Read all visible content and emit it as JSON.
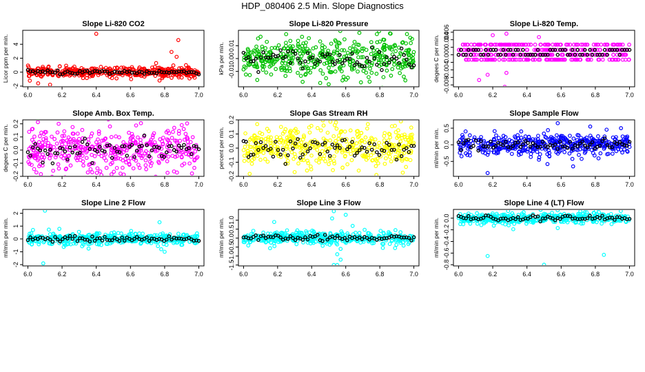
{
  "title": "HDP_080406  2.5 Min. Slope Diagnostics",
  "chart_data": [
    {
      "type": "scatter",
      "title": "Slope Li-820 CO2",
      "ylabel": "Licor ppm per min.",
      "color": "#ff0000",
      "xlim": [
        5.97,
        7.03
      ],
      "ylim": [
        -2.1,
        6.0
      ],
      "xticks": [
        "6.0",
        "6.2",
        "6.4",
        "6.6",
        "6.8",
        "7.0"
      ],
      "yticks": [
        "-2",
        "0",
        "2",
        "4"
      ],
      "spread": 0.35,
      "outliers": [
        [
          6.4,
          5.5
        ],
        [
          6.88,
          4.6
        ],
        [
          6.84,
          2.9
        ],
        [
          6.87,
          2.2
        ],
        [
          6.06,
          -1.6
        ],
        [
          6.13,
          -1.8
        ],
        [
          6.77,
          -1.2
        ],
        [
          6.75,
          1.3
        ]
      ]
    },
    {
      "type": "scatter",
      "title": "Slope Li-820 Pressure",
      "ylabel": "kPa per min.",
      "color": "#00c000",
      "xlim": [
        5.97,
        7.03
      ],
      "ylim": [
        -0.022,
        0.022
      ],
      "xticks": [
        "6.0",
        "6.2",
        "6.4",
        "6.6",
        "6.8",
        "7.0"
      ],
      "yticks": [
        "-0.01",
        "0.00",
        "0.01"
      ],
      "spread": 0.008,
      "outliers": [
        [
          6.25,
          0.019
        ],
        [
          6.45,
          -0.019
        ],
        [
          6.68,
          0.02
        ],
        [
          6.5,
          -0.02
        ],
        [
          6.74,
          -0.018
        ],
        [
          6.95,
          -0.017
        ],
        [
          6.1,
          0.017
        ]
      ]
    },
    {
      "type": "scatter",
      "title": "Slope Li-820 Temp.",
      "ylabel": "degees C per min.",
      "color": "#ff00ff",
      "xlim": [
        5.97,
        7.03
      ],
      "ylim": [
        -0.0085,
        0.0065
      ],
      "xticks": [
        "6.0",
        "6.2",
        "6.4",
        "6.6",
        "6.8",
        "7.0"
      ],
      "yticks": [
        "-0.008",
        "-0.004",
        "0.000",
        "0.004"
      ],
      "yticks_vals": [
        -0.008,
        -0.004,
        0.0,
        0.004
      ],
      "extra_ticks": [
        -0.006,
        -0.002,
        0.002,
        0.006
      ],
      "extra_labels": [
        "",
        "",
        "",
        "0.006"
      ],
      "spread": 0.0,
      "levels": [
        -0.0013,
        0.0,
        0.0013,
        0.0027
      ],
      "outliers": [
        [
          6.12,
          -0.0067
        ],
        [
          6.27,
          -0.0085
        ],
        [
          6.17,
          -0.0053
        ],
        [
          6.28,
          -0.0048
        ],
        [
          6.2,
          0.0052
        ],
        [
          6.28,
          0.0056
        ],
        [
          6.47,
          0.0047
        ]
      ]
    },
    {
      "type": "scatter",
      "title": "Slope Amb. Box Temp.",
      "ylabel": "degees C per min.",
      "color": "#ff00ff",
      "xlim": [
        5.97,
        7.03
      ],
      "ylim": [
        -0.2,
        0.23
      ],
      "xticks": [
        "6.0",
        "6.2",
        "6.4",
        "6.6",
        "6.8",
        "7.0"
      ],
      "yticks": [
        "-0.2",
        "-0.1",
        "0.0",
        "0.1",
        "0.2"
      ],
      "spread": 0.085,
      "outliers": [
        [
          6.05,
          -0.17
        ],
        [
          6.43,
          -0.19
        ],
        [
          6.18,
          0.2
        ],
        [
          6.48,
          0.18
        ],
        [
          6.9,
          0.19
        ]
      ]
    },
    {
      "type": "scatter",
      "title": "Slope Gas Stream RH",
      "ylabel": "percent per min.",
      "color": "#ffff00",
      "xlim": [
        5.97,
        7.03
      ],
      "ylim": [
        -0.2,
        0.2
      ],
      "xticks": [
        "6.0",
        "6.2",
        "6.4",
        "6.6",
        "6.8",
        "7.0"
      ],
      "yticks": [
        "-0.2",
        "-0.1",
        "0.0",
        "0.1",
        "0.2"
      ],
      "spread": 0.075,
      "outliers": [
        [
          6.08,
          0.17
        ],
        [
          6.22,
          0.15
        ],
        [
          6.47,
          0.16
        ],
        [
          6.73,
          0.17
        ],
        [
          6.3,
          -0.17
        ],
        [
          6.78,
          -0.19
        ]
      ]
    },
    {
      "type": "scatter",
      "title": "Slope Sample Flow",
      "ylabel": "ml/min per min.",
      "color": "#0000ff",
      "xlim": [
        5.97,
        7.03
      ],
      "ylim": [
        -0.95,
        0.75
      ],
      "xticks": [
        "6.0",
        "6.2",
        "6.4",
        "6.6",
        "6.8",
        "7.0"
      ],
      "yticks": [
        "-0.5",
        "0.0",
        "0.5"
      ],
      "spread": 0.16,
      "outliers": [
        [
          6.17,
          -0.85
        ],
        [
          6.52,
          -0.58
        ],
        [
          6.58,
          0.65
        ],
        [
          6.77,
          0.55
        ],
        [
          6.95,
          0.5
        ],
        [
          6.47,
          -0.45
        ],
        [
          6.67,
          -0.65
        ]
      ]
    },
    {
      "type": "scatter",
      "title": "Slope Line 2 Flow",
      "ylabel": "ml/min per min.",
      "color": "#00ffff",
      "xlim": [
        5.97,
        7.03
      ],
      "ylim": [
        -2.1,
        2.3
      ],
      "xticks": [
        "6.0",
        "6.2",
        "6.4",
        "6.6",
        "6.8",
        "7.0"
      ],
      "yticks": [
        "-2",
        "-1",
        "0",
        "1",
        "2"
      ],
      "spread": 0.22,
      "outliers": [
        [
          6.1,
          2.2
        ],
        [
          6.09,
          -1.9
        ],
        [
          6.77,
          1.3
        ],
        [
          6.8,
          -1.0
        ],
        [
          6.78,
          -0.8
        ],
        [
          6.03,
          0.7
        ]
      ]
    },
    {
      "type": "scatter",
      "title": "Slope Line 3 Flow",
      "ylabel": "ml/min per min.",
      "color": "#00ffff",
      "xlim": [
        5.97,
        7.03
      ],
      "ylim": [
        -1.55,
        1.6
      ],
      "xticks": [
        "6.0",
        "6.2",
        "6.4",
        "6.6",
        "6.8",
        "7.0"
      ],
      "yticks": [
        "-1.5",
        "-1.0",
        "-0.5",
        "0.0",
        "0.5",
        "1.0"
      ],
      "spread": 0.18,
      "outliers": [
        [
          6.53,
          -1.5
        ],
        [
          6.55,
          -1.5
        ],
        [
          6.57,
          -1.2
        ],
        [
          6.55,
          -0.9
        ],
        [
          6.57,
          -0.6
        ],
        [
          6.53,
          1.5
        ],
        [
          6.6,
          1.3
        ],
        [
          6.52,
          1.1
        ],
        [
          6.18,
          0.9
        ]
      ]
    },
    {
      "type": "scatter",
      "title": "Slope Line 4 (LT) Flow",
      "ylabel": "ml/min per min.",
      "color": "#00ffff",
      "xlim": [
        5.97,
        7.03
      ],
      "ylim": [
        -0.82,
        0.15
      ],
      "xticks": [
        "6.0",
        "6.2",
        "6.4",
        "6.6",
        "6.8",
        "7.0"
      ],
      "yticks": [
        "-0.8",
        "-0.6",
        "-0.4",
        "-0.2",
        "0.0"
      ],
      "spread": 0.045,
      "outliers": [
        [
          6.17,
          -0.65
        ],
        [
          6.5,
          -0.8
        ],
        [
          6.85,
          -0.63
        ],
        [
          6.32,
          -0.19
        ],
        [
          6.58,
          -0.17
        ]
      ]
    }
  ]
}
